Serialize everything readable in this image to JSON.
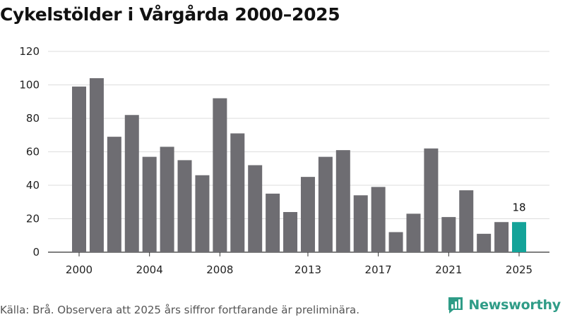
{
  "title": "Cykelstölder i Vårgårda 2000–2025",
  "footer": {
    "source": "Källa: Brå. Observera att 2025 års siffror fortfarande är preliminära.",
    "brand": "Newsworthy"
  },
  "colors": {
    "bar": "#6e6d72",
    "highlight": "#14a399",
    "grid": "#dddddd",
    "brand": "#2f9c87"
  },
  "chart_data": {
    "type": "bar",
    "title": "Cykelstölder i Vårgårda 2000–2025",
    "xlabel": "",
    "ylabel": "",
    "ylim": [
      0,
      120
    ],
    "yticks": [
      0,
      20,
      40,
      60,
      80,
      100,
      120
    ],
    "categories": [
      "2000",
      "2001",
      "2002",
      "2003",
      "2004",
      "2005",
      "2006",
      "2007",
      "2008",
      "2009",
      "2010",
      "2011",
      "2012",
      "2013",
      "2014",
      "2015",
      "2016",
      "2017",
      "2018",
      "2019",
      "2020",
      "2021",
      "2022",
      "2023",
      "2024",
      "2025"
    ],
    "values": [
      99,
      104,
      69,
      82,
      57,
      63,
      55,
      46,
      92,
      71,
      52,
      35,
      24,
      45,
      57,
      61,
      34,
      39,
      12,
      23,
      62,
      21,
      37,
      11,
      18,
      18
    ],
    "xtick_labels": [
      "2000",
      "2004",
      "2008",
      "2013",
      "2017",
      "2021",
      "2025"
    ],
    "highlight": {
      "category": "2025",
      "label": "18"
    },
    "grid": true
  }
}
